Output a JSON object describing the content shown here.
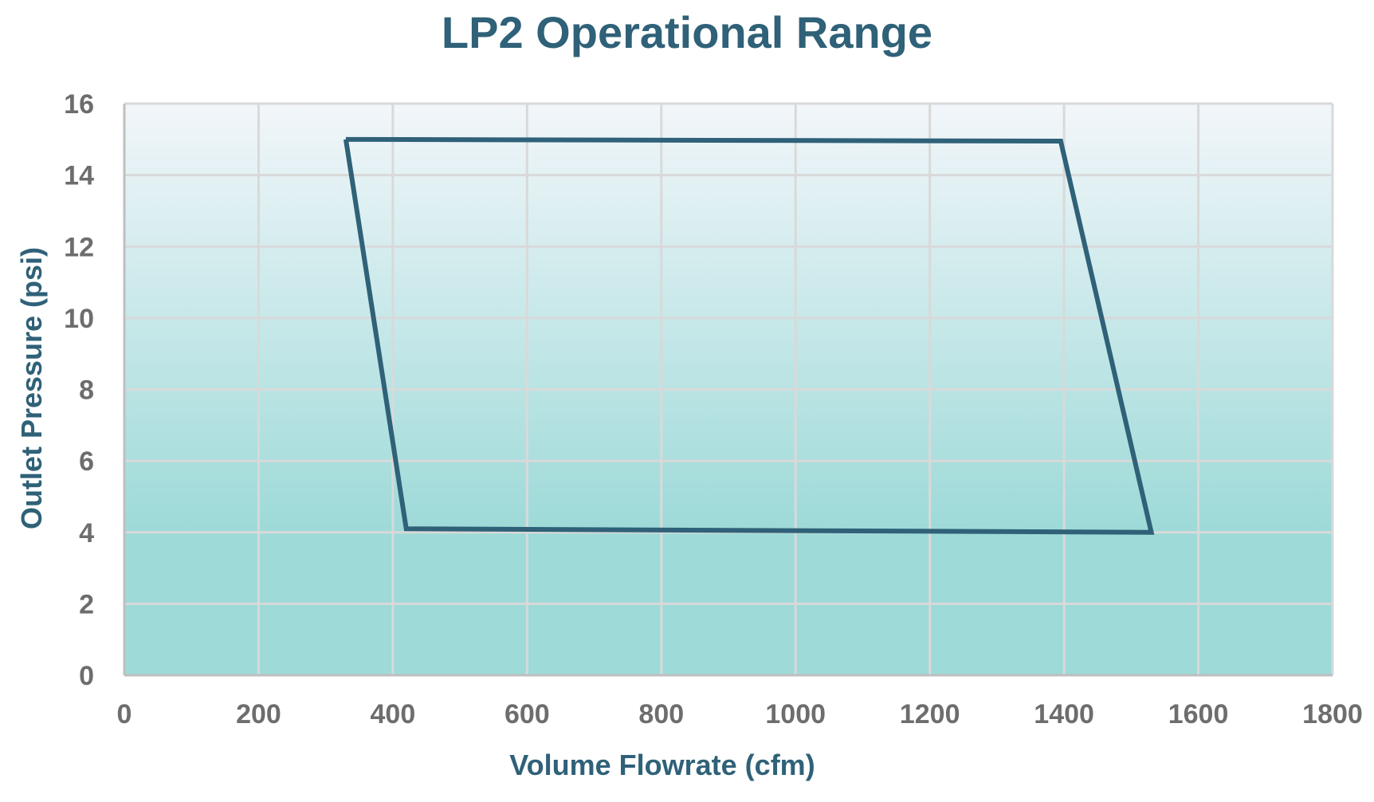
{
  "colors": {
    "title": "#2f6178",
    "axis_label": "#2f6178",
    "tick_label": "#6d6d6d",
    "series_line": "#2f6178",
    "gridline": "#d9d9d9",
    "axis_line": "#bfbfbf",
    "plot_fill_top": "#f2f6fa",
    "plot_fill_bottom": "#9ddad8"
  },
  "chart_data": {
    "type": "line",
    "title": "LP2 Operational Range",
    "xlabel": "Volume Flowrate (cfm)",
    "ylabel": "Outlet Pressure (psi)",
    "xlim": [
      0,
      1800
    ],
    "ylim": [
      0,
      16
    ],
    "x_ticks": [
      0,
      200,
      400,
      600,
      800,
      1000,
      1200,
      1400,
      1600,
      1800
    ],
    "y_ticks": [
      0,
      2,
      4,
      6,
      8,
      10,
      12,
      14,
      16
    ],
    "grid": true,
    "legend": "none",
    "gradient_fill": {
      "direction": "vertical",
      "solid_below_y": 4
    },
    "series": [
      {
        "closed": true,
        "points": [
          {
            "x": 330,
            "y": 15.0
          },
          {
            "x": 1395,
            "y": 14.95
          },
          {
            "x": 1530,
            "y": 4.0
          },
          {
            "x": 420,
            "y": 4.1
          },
          {
            "x": 330,
            "y": 15.0
          }
        ]
      }
    ]
  }
}
